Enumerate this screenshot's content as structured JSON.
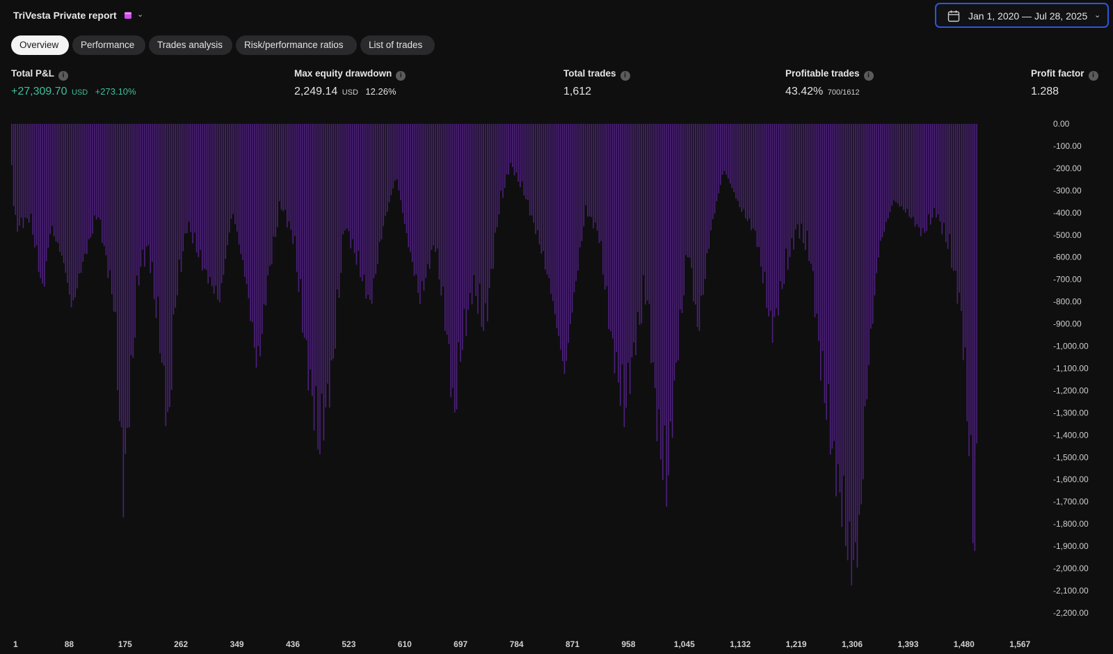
{
  "header": {
    "report_title": "TriVesta Private report",
    "badge_icon": "calendar-badge-icon",
    "badge_color": "#d24cf0",
    "date_range": "Jan 1, 2020 — Jul 28, 2025"
  },
  "tabs": [
    {
      "label": "Overview",
      "active": true
    },
    {
      "label": "Performance",
      "active": false
    },
    {
      "label": "Trades analysis",
      "active": false
    },
    {
      "label": "Risk/performance ratios",
      "active": false
    },
    {
      "label": "List of trades",
      "active": false
    }
  ],
  "metrics": {
    "total_pnl": {
      "label": "Total P&L",
      "value": "+27,309.70",
      "unit": "USD",
      "pct": "+273.10%"
    },
    "max_drawdown": {
      "label": "Max equity drawdown",
      "value": "2,249.14",
      "unit": "USD",
      "pct": "12.26%"
    },
    "total_trades": {
      "label": "Total trades",
      "value": "1,612"
    },
    "profitable_trades": {
      "label": "Profitable trades",
      "value": "43.42%",
      "sub": "700/1612"
    },
    "profit_factor": {
      "label": "Profit factor",
      "value": "1.288"
    }
  },
  "colors": {
    "bar": "#5a2393",
    "positive": "#3fbf9a",
    "accent_border": "#2f56e0"
  },
  "chart_data": {
    "type": "bar",
    "title": "",
    "xlabel": "",
    "ylabel": "",
    "x_range": [
      1,
      1612
    ],
    "ylim": [
      -2249.14,
      0
    ],
    "y_ticks": [
      "0.00",
      "-100.00",
      "-200.00",
      "-300.00",
      "-400.00",
      "-500.00",
      "-600.00",
      "-700.00",
      "-800.00",
      "-900.00",
      "-1,000.00",
      "-1,100.00",
      "-1,200.00",
      "-1,300.00",
      "-1,400.00",
      "-1,500.00",
      "-1,600.00",
      "-1,700.00",
      "-1,800.00",
      "-1,900.00",
      "-2,000.00",
      "-2,100.00",
      "-2,200.00"
    ],
    "x_ticks": [
      "1",
      "88",
      "175",
      "262",
      "349",
      "436",
      "523",
      "610",
      "697",
      "784",
      "871",
      "958",
      "1,045",
      "1,132",
      "1,219",
      "1,306",
      "1,393",
      "1,480",
      "1,567"
    ],
    "series": [
      {
        "drawdown_envelope": [
          [
            1,
            -200
          ],
          [
            6,
            -520
          ],
          [
            30,
            -480
          ],
          [
            50,
            -900
          ],
          [
            62,
            -560
          ],
          [
            80,
            -760
          ],
          [
            95,
            -1050
          ],
          [
            110,
            -780
          ],
          [
            135,
            -460
          ],
          [
            160,
            -900
          ],
          [
            175,
            -1820
          ],
          [
            188,
            -1200
          ],
          [
            200,
            -700
          ],
          [
            214,
            -600
          ],
          [
            232,
            -1050
          ],
          [
            245,
            -1520
          ],
          [
            256,
            -880
          ],
          [
            275,
            -500
          ],
          [
            300,
            -760
          ],
          [
            325,
            -980
          ],
          [
            345,
            -500
          ],
          [
            366,
            -860
          ],
          [
            384,
            -1310
          ],
          [
            400,
            -800
          ],
          [
            420,
            -400
          ],
          [
            440,
            -560
          ],
          [
            462,
            -1180
          ],
          [
            480,
            -1560
          ],
          [
            500,
            -1220
          ],
          [
            520,
            -500
          ],
          [
            535,
            -650
          ],
          [
            560,
            -960
          ],
          [
            580,
            -560
          ],
          [
            600,
            -300
          ],
          [
            617,
            -640
          ],
          [
            637,
            -940
          ],
          [
            660,
            -600
          ],
          [
            680,
            -1080
          ],
          [
            690,
            -1460
          ],
          [
            700,
            -1120
          ],
          [
            720,
            -780
          ],
          [
            738,
            -1000
          ],
          [
            760,
            -420
          ],
          [
            778,
            -200
          ],
          [
            800,
            -360
          ],
          [
            822,
            -620
          ],
          [
            840,
            -900
          ],
          [
            862,
            -1440
          ],
          [
            875,
            -1000
          ],
          [
            895,
            -460
          ],
          [
            915,
            -560
          ],
          [
            935,
            -1080
          ],
          [
            955,
            -1420
          ],
          [
            972,
            -1060
          ],
          [
            990,
            -800
          ],
          [
            1008,
            -1520
          ],
          [
            1022,
            -1800
          ],
          [
            1035,
            -1240
          ],
          [
            1055,
            -620
          ],
          [
            1070,
            -1100
          ],
          [
            1090,
            -580
          ],
          [
            1110,
            -260
          ],
          [
            1135,
            -460
          ],
          [
            1160,
            -580
          ],
          [
            1185,
            -1060
          ],
          [
            1205,
            -740
          ],
          [
            1225,
            -500
          ],
          [
            1245,
            -640
          ],
          [
            1262,
            -1200
          ],
          [
            1280,
            -1620
          ],
          [
            1296,
            -1940
          ],
          [
            1306,
            -2220
          ],
          [
            1314,
            -2249.14
          ],
          [
            1322,
            -2100
          ],
          [
            1335,
            -1300
          ],
          [
            1352,
            -680
          ],
          [
            1375,
            -440
          ],
          [
            1400,
            -500
          ],
          [
            1420,
            -580
          ],
          [
            1440,
            -440
          ],
          [
            1462,
            -620
          ],
          [
            1480,
            -920
          ],
          [
            1492,
            -1550
          ],
          [
            1502,
            -2140
          ],
          [
            1505,
            -1400
          ],
          [
            1506,
            0
          ]
        ]
      }
    ]
  }
}
